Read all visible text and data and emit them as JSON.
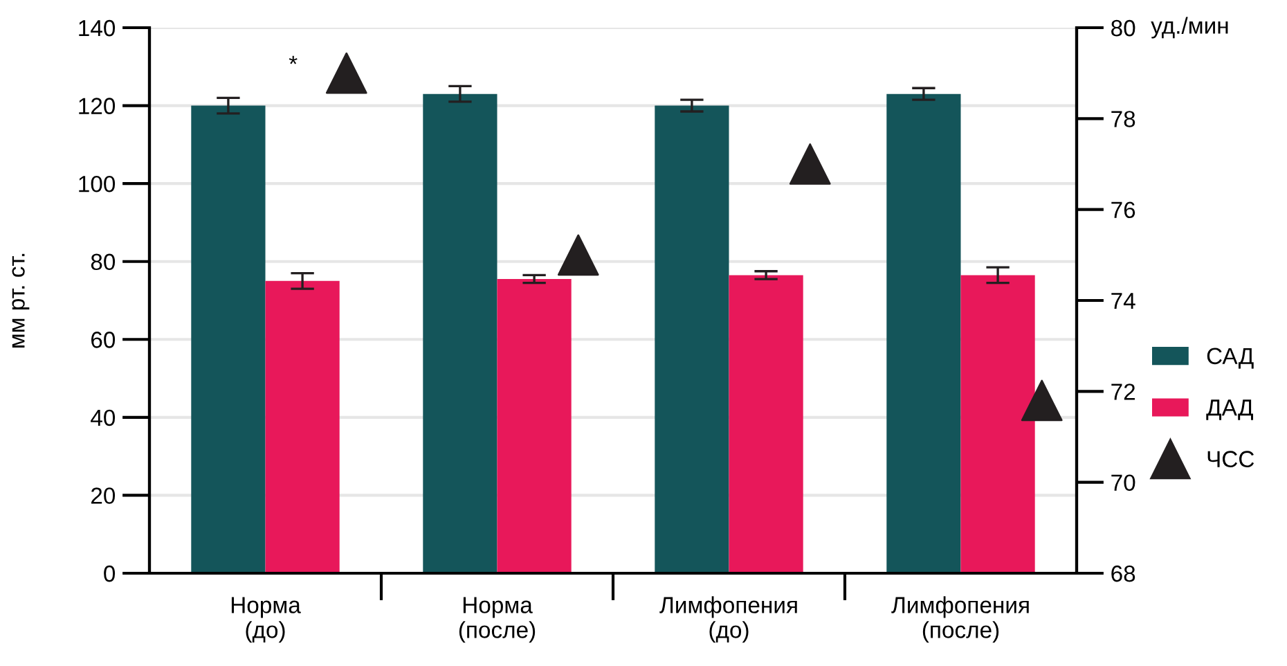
{
  "chart_data": {
    "type": "bar",
    "ylabel": "мм рт. ст.",
    "y2label": "уд./мин",
    "categories": [
      "Норма\n(до)",
      "Норма\n(после)",
      "Лимфопения\n(до)",
      "Лимфопения\n(после)"
    ],
    "series": [
      {
        "name": "САД",
        "color": "#14555a",
        "values": [
          120,
          123,
          120,
          123
        ],
        "errors": [
          2,
          2,
          1.5,
          1.5
        ]
      },
      {
        "name": "ДАД",
        "color": "#e8185a",
        "values": [
          75,
          75.5,
          76.5,
          76.5
        ],
        "errors": [
          2,
          1,
          1,
          2
        ]
      },
      {
        "name": "ЧСС",
        "type": "scatter",
        "axis": "y2",
        "color": "#231f20",
        "values": [
          79,
          75,
          77,
          71.8
        ]
      }
    ],
    "ylim": [
      0,
      140
    ],
    "yticks": [
      0,
      20,
      40,
      60,
      80,
      100,
      120,
      140
    ],
    "y2lim": [
      68,
      80
    ],
    "y2ticks": [
      68,
      70,
      72,
      74,
      76,
      78,
      80
    ],
    "annotations": [
      "*"
    ],
    "grid": "y",
    "legend": "right",
    "marker": "triangle"
  }
}
